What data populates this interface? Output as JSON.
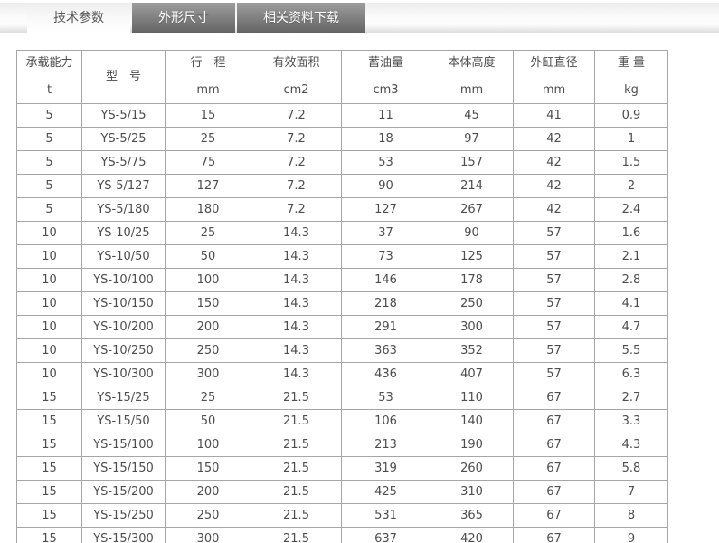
{
  "tabs": [
    {
      "label": "技术参数",
      "active": true
    },
    {
      "label": "外形尺寸",
      "active": false
    },
    {
      "label": "相关资料下载",
      "active": false
    }
  ],
  "table": {
    "columns": [
      {
        "title": "承载能力",
        "unit": "t"
      },
      {
        "title": "型　号",
        "unit": ""
      },
      {
        "title": "行　程",
        "unit": "mm"
      },
      {
        "title": "有效面积",
        "unit": "cm2"
      },
      {
        "title": "蓄油量",
        "unit": "cm3"
      },
      {
        "title": "本体高度",
        "unit": "mm"
      },
      {
        "title": "外缸直径",
        "unit": "mm"
      },
      {
        "title": "重 量",
        "unit": "kg"
      }
    ],
    "rows": [
      [
        "5",
        "YS-5/15",
        "15",
        "7.2",
        "11",
        "45",
        "41",
        "0.9"
      ],
      [
        "5",
        "YS-5/25",
        "25",
        "7.2",
        "18",
        "97",
        "42",
        "1"
      ],
      [
        "5",
        "YS-5/75",
        "75",
        "7.2",
        "53",
        "157",
        "42",
        "1.5"
      ],
      [
        "5",
        "YS-5/127",
        "127",
        "7.2",
        "90",
        "214",
        "42",
        "2"
      ],
      [
        "5",
        "YS-5/180",
        "180",
        "7.2",
        "127",
        "267",
        "42",
        "2.4"
      ],
      [
        "10",
        "YS-10/25",
        "25",
        "14.3",
        "37",
        "90",
        "57",
        "1.6"
      ],
      [
        "10",
        "YS-10/50",
        "50",
        "14.3",
        "73",
        "125",
        "57",
        "2.1"
      ],
      [
        "10",
        "YS-10/100",
        "100",
        "14.3",
        "146",
        "178",
        "57",
        "2.8"
      ],
      [
        "10",
        "YS-10/150",
        "150",
        "14.3",
        "218",
        "250",
        "57",
        "4.1"
      ],
      [
        "10",
        "YS-10/200",
        "200",
        "14.3",
        "291",
        "300",
        "57",
        "4.7"
      ],
      [
        "10",
        "YS-10/250",
        "250",
        "14.3",
        "363",
        "352",
        "57",
        "5.5"
      ],
      [
        "10",
        "YS-10/300",
        "300",
        "14.3",
        "436",
        "407",
        "57",
        "6.3"
      ],
      [
        "15",
        "YS-15/25",
        "25",
        "21.5",
        "53",
        "110",
        "67",
        "2.7"
      ],
      [
        "15",
        "YS-15/50",
        "50",
        "21.5",
        "106",
        "140",
        "67",
        "3.3"
      ],
      [
        "15",
        "YS-15/100",
        "100",
        "21.5",
        "213",
        "190",
        "67",
        "4.3"
      ],
      [
        "15",
        "YS-15/150",
        "150",
        "21.5",
        "319",
        "260",
        "67",
        "5.8"
      ],
      [
        "15",
        "YS-15/200",
        "200",
        "21.5",
        "425",
        "310",
        "67",
        "7"
      ],
      [
        "15",
        "YS-15/250",
        "250",
        "21.5",
        "531",
        "365",
        "67",
        "8"
      ],
      [
        "15",
        "YS-15/300",
        "300",
        "21.5",
        "637",
        "420",
        "67",
        "9"
      ]
    ]
  },
  "colors": {
    "tab_inactive_top": "#9d9d9d",
    "tab_inactive_bottom": "#626262",
    "tab_active_text": "#555555",
    "tab_inactive_text": "#ffffff",
    "table_border": "#a6a6a6",
    "table_text": "#4d4d4d"
  }
}
